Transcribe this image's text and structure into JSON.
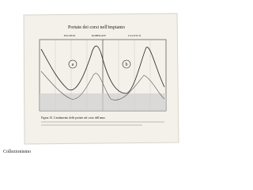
{
  "header": {
    "title": "Portate dei corsi nell'impianto"
  },
  "columns": [
    "PUGNDO",
    "ROBERATE",
    "CALUSCO"
  ],
  "panels": [
    "a",
    "b"
  ],
  "caption": "Figura 10. L'andamento delle portate nel corso dell'anno",
  "footer": "Collezionismo"
}
